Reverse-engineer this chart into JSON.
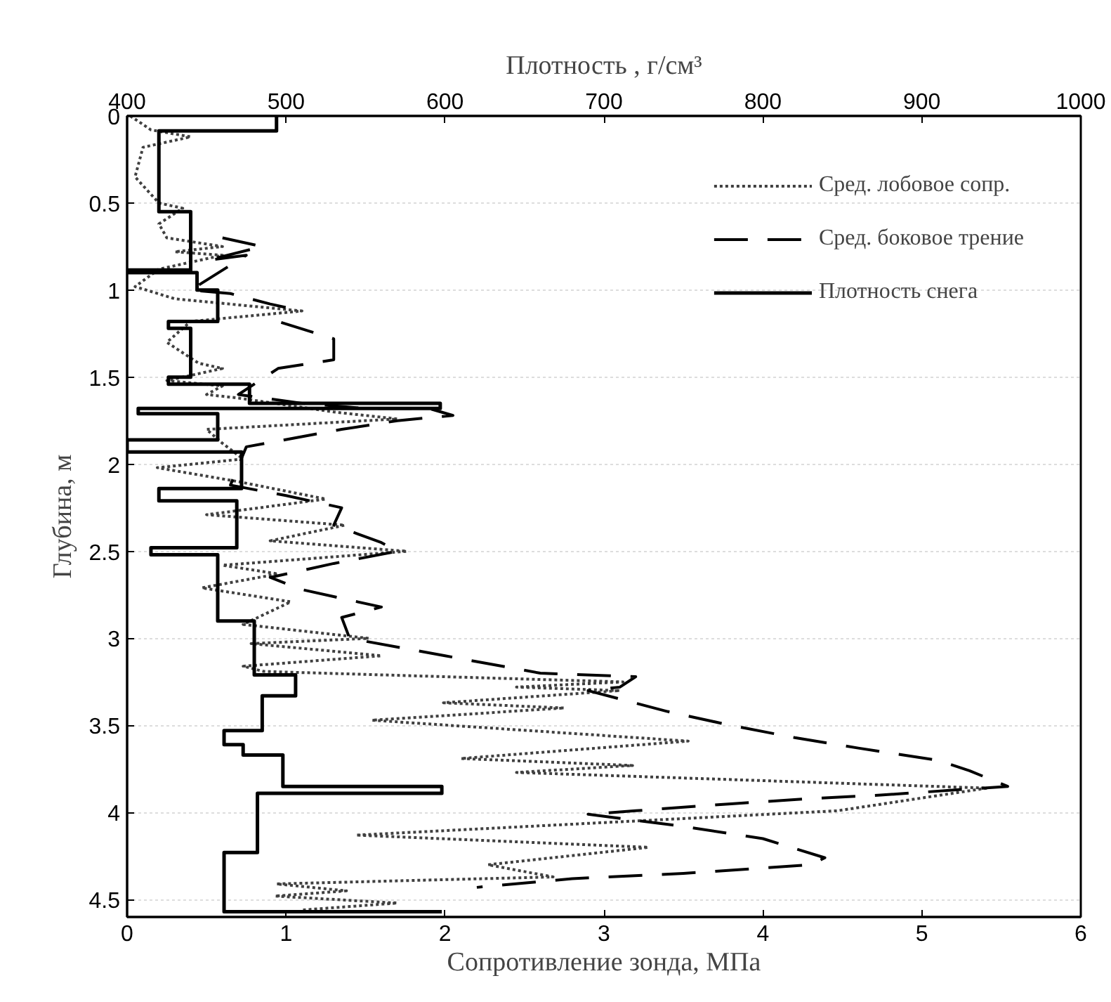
{
  "chart_data": {
    "type": "line",
    "xlabel": "Сопротивление зонда, МПа",
    "x2label": "Плотность , г/см³",
    "ylabel": "Глубина, м",
    "xlim": [
      0,
      6
    ],
    "xticks": [
      0,
      1,
      2,
      3,
      4,
      5,
      6
    ],
    "x2lim": [
      400,
      1000
    ],
    "x2ticks": [
      400,
      500,
      600,
      700,
      800,
      900,
      1000
    ],
    "ylim": [
      4.6,
      0
    ],
    "yticks": [
      0,
      0.5,
      1,
      1.5,
      2,
      2.5,
      3,
      3.5,
      4,
      4.5
    ],
    "grid": "y",
    "legend": "top right",
    "series": [
      {
        "name": "Сред. лобовое сопр.",
        "color": "#404040",
        "line_style": "dotted",
        "x": [
          0.02,
          0.15,
          0.4,
          0.1,
          0.05,
          0.2,
          0.35,
          0.2,
          0.25,
          0.6,
          0.3,
          0.6,
          0.2,
          0.05,
          0.3,
          1.1,
          0.4,
          0.25,
          0.45,
          0.6,
          0.25,
          0.6,
          0.5,
          0.7,
          1.3,
          1.7,
          0.5,
          0.6,
          0.73,
          0.19,
          0.7,
          1.25,
          0.5,
          1.37,
          0.9,
          1.76,
          0.6,
          0.95,
          0.47,
          1.03,
          0.73,
          1.52,
          0.78,
          1.6,
          0.73,
          0.86,
          3.12,
          2.45,
          3.1,
          1.99,
          2.75,
          1.54,
          3.53,
          2.1,
          3.18,
          2.45,
          5.41,
          4.47,
          1.44,
          3.28,
          2.27,
          2.68,
          0.94,
          1.38,
          0.93,
          1.7,
          1.1
        ],
        "values": [
          0.0,
          0.08,
          0.12,
          0.18,
          0.35,
          0.5,
          0.53,
          0.62,
          0.7,
          0.75,
          0.78,
          0.8,
          0.88,
          0.98,
          1.05,
          1.12,
          1.18,
          1.3,
          1.42,
          1.45,
          1.52,
          1.55,
          1.6,
          1.62,
          1.7,
          1.74,
          1.8,
          1.88,
          1.97,
          2.02,
          2.1,
          2.2,
          2.29,
          2.35,
          2.44,
          2.5,
          2.58,
          2.63,
          2.71,
          2.79,
          2.92,
          3.0,
          3.03,
          3.1,
          3.16,
          3.19,
          3.25,
          3.28,
          3.3,
          3.37,
          3.4,
          3.47,
          3.59,
          3.69,
          3.73,
          3.77,
          3.86,
          3.99,
          4.13,
          4.2,
          4.3,
          4.37,
          4.41,
          4.45,
          4.48,
          4.52,
          4.56
        ]
      },
      {
        "name": "Сред. боковое трение",
        "color": "#000000",
        "line_style": "dashed",
        "x": [
          0.6,
          0.85,
          0.5,
          0.75,
          0.4,
          0.65,
          0.9,
          1.0,
          0.95,
          1.3,
          1.3,
          0.95,
          0.7,
          1.1,
          1.5,
          1.9,
          2.05,
          1.7,
          1.35,
          1.05,
          0.75,
          0.65,
          1.0,
          1.35,
          1.3,
          1.6,
          1.7,
          1.3,
          0.9,
          1.1,
          1.6,
          1.35,
          1.4,
          2.0,
          2.6,
          3.2,
          3.1,
          2.9,
          3.4,
          3.8,
          4.2,
          4.6,
          5.1,
          5.3,
          5.54,
          4.74,
          4.3,
          3.8,
          3.2,
          2.9,
          3.5,
          4.0,
          4.39,
          4.3,
          3.5,
          2.8,
          2.2
        ],
        "values": [
          0.7,
          0.75,
          0.83,
          0.8,
          1.0,
          1.02,
          1.08,
          1.1,
          1.18,
          1.28,
          1.4,
          1.45,
          1.6,
          1.65,
          1.68,
          1.68,
          1.72,
          1.75,
          1.8,
          1.85,
          1.9,
          2.12,
          2.18,
          2.25,
          2.35,
          2.45,
          2.5,
          2.57,
          2.65,
          2.72,
          2.82,
          2.88,
          3.0,
          3.1,
          3.2,
          3.22,
          3.28,
          3.3,
          3.42,
          3.5,
          3.57,
          3.63,
          3.7,
          3.76,
          3.85,
          3.9,
          3.92,
          3.95,
          3.99,
          4.01,
          4.08,
          4.15,
          4.26,
          4.3,
          4.35,
          4.38,
          4.43
        ]
      },
      {
        "name": "Плотность снега",
        "color": "#000000",
        "line_style": "solid",
        "axis": "x2",
        "x": [
          494,
          494,
          420,
          420,
          440,
          440,
          401,
          401,
          444,
          444,
          457,
          457,
          426,
          426,
          440,
          440,
          426,
          426,
          477,
          477,
          597,
          597,
          407,
          407,
          457,
          457,
          400,
          400,
          472,
          472,
          420,
          420,
          469,
          469,
          415,
          415,
          457,
          457,
          480,
          480,
          506,
          506,
          485,
          485,
          461,
          461,
          473,
          473,
          498,
          498,
          598,
          598,
          482,
          482,
          461,
          461,
          598
        ],
        "values": [
          0,
          0.086,
          0.086,
          0.55,
          0.55,
          0.885,
          0.885,
          0.9,
          0.9,
          1.0,
          1.0,
          1.18,
          1.18,
          1.22,
          1.22,
          1.5,
          1.5,
          1.54,
          1.54,
          1.65,
          1.65,
          1.68,
          1.68,
          1.71,
          1.71,
          1.86,
          1.86,
          1.93,
          1.93,
          2.14,
          2.14,
          2.21,
          2.21,
          2.48,
          2.48,
          2.52,
          2.52,
          2.9,
          2.9,
          3.21,
          3.21,
          3.33,
          3.33,
          3.53,
          3.53,
          3.61,
          3.61,
          3.67,
          3.67,
          3.85,
          3.85,
          3.89,
          3.89,
          4.23,
          4.23,
          4.57,
          4.57
        ]
      }
    ]
  }
}
